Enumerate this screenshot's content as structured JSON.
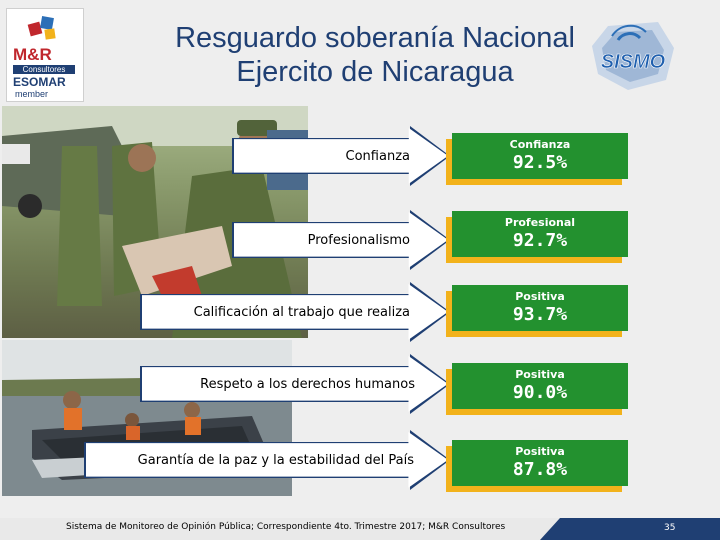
{
  "title_line1": "Resguardo soberanía Nacional",
  "title_line2": "Ejercito de Nicaragua",
  "logo_left": {
    "brand": "M&R",
    "sub": "Consultores",
    "org": "ESOMAR",
    "tag": "member"
  },
  "logo_right": {
    "brand": "SISMO"
  },
  "items": [
    {
      "label": "Confianza",
      "box_caption": "Confianza",
      "value": "92.5%"
    },
    {
      "label": "Profesionalismo",
      "box_caption": "Profesional",
      "value": "92.7%"
    },
    {
      "label": "Calificación al trabajo que realiza",
      "box_caption": "Positiva",
      "value": "93.7%"
    },
    {
      "label": "Respeto a los derechos humanos",
      "box_caption": "Positiva",
      "value": "90.0%"
    },
    {
      "label": "Garantía de la paz y la estabilidad del País",
      "box_caption": "Positiva",
      "value": "87.8%"
    }
  ],
  "footer": "Sistema de Monitoreo de Opinión Pública; Correspondiente 4to. Trimestre 2017; M&R Consultores",
  "page_number": "35",
  "colors": {
    "title": "#1f3f73",
    "box": "#23912f",
    "box_shadow": "#f2b21b",
    "arrow": "#1f3f73"
  }
}
